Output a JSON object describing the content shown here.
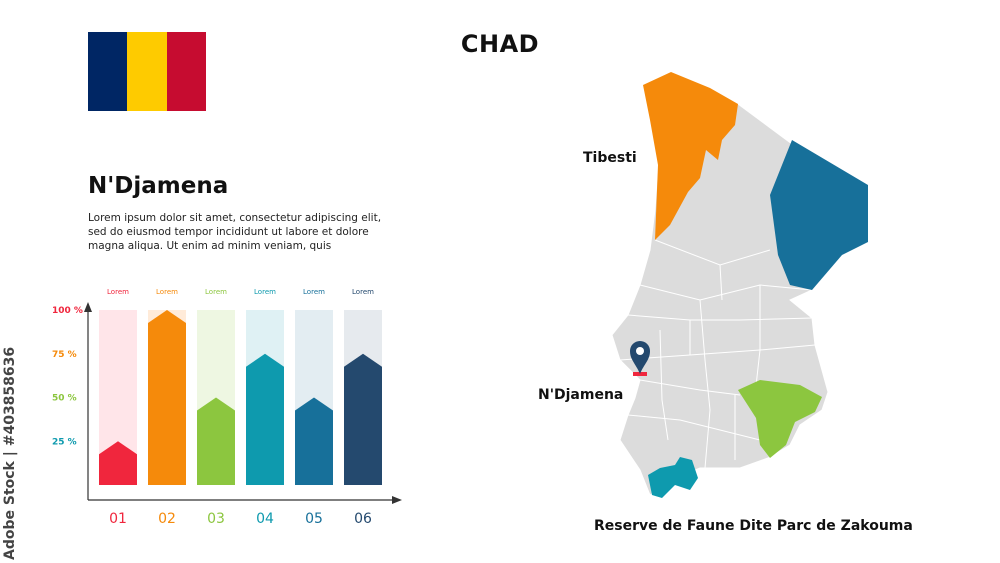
{
  "title": "CHAD",
  "flag": {
    "colors": [
      "#002664",
      "#FECB00",
      "#C60C30"
    ]
  },
  "info": {
    "city": "N'Djamena",
    "description": "Lorem ipsum dolor sit amet, consectetur adipiscing elit, sed do eiusmod tempor incididunt ut labore et dolore magna aliqua. Ut enim ad minim veniam, quis"
  },
  "chart_data": {
    "type": "bar",
    "categories": [
      "01",
      "02",
      "03",
      "04",
      "05",
      "06"
    ],
    "series_labels": [
      "Lorem",
      "Lorem",
      "Lorem",
      "Lorem",
      "Lorem",
      "Lorem"
    ],
    "values": [
      25,
      100,
      50,
      75,
      50,
      75
    ],
    "colors": [
      "#F0263D",
      "#F58A0B",
      "#8CC63F",
      "#0E9AAE",
      "#17709A",
      "#24496E"
    ],
    "background_colors": [
      "#FFE5E9",
      "#FFEBD9",
      "#EEF7E2",
      "#DFF1F4",
      "#E3EDF2",
      "#E6EAEE"
    ],
    "yticks": [
      {
        "label": "100 %",
        "value": 100,
        "color": "#F0263D"
      },
      {
        "label": "75 %",
        "value": 75,
        "color": "#F58A0B"
      },
      {
        "label": "50 %",
        "value": 50,
        "color": "#8CC63F"
      },
      {
        "label": "25 %",
        "value": 25,
        "color": "#0E9AAE"
      }
    ],
    "ylim": [
      0,
      100
    ]
  },
  "map": {
    "region_color": "#DCDCDC",
    "labels": {
      "tibesti": "Tibesti",
      "capital": "N'Djamena",
      "zakouma": "Reserve de Faune Dite Parc de Zakouma"
    },
    "highlight_colors": {
      "tibesti": "#F58A0B",
      "ennedi": "#17709A",
      "salamat": "#8CC63F",
      "logone": "#0E9AAE",
      "pin": "#24496E",
      "marker": "#F0263D"
    }
  },
  "watermark": "Adobe Stock | #403858636"
}
